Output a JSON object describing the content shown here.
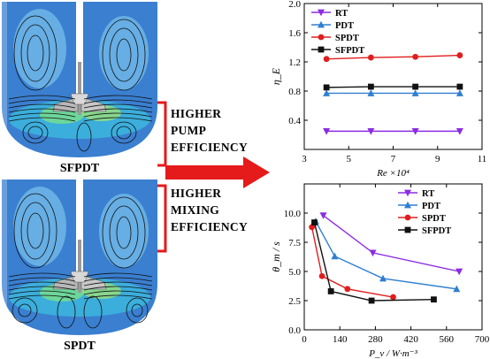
{
  "images": [
    {
      "label": "SFPDT"
    },
    {
      "label": "SPDT"
    }
  ],
  "annotations": {
    "pump": [
      "HIGHER",
      "PUMP",
      "EFFICIENCY"
    ],
    "mixing": [
      "HIGHER",
      "MIXING",
      "EFFICIENCY"
    ]
  },
  "colors": {
    "RT": "#8b2be2",
    "PDT": "#2f7fd0",
    "SPDT": "#e01e1e",
    "SFPDT": "#111111",
    "arrow": "#e51a1a",
    "flow_bg": "#3a7fd0",
    "flow_light": "#6fb6e8",
    "flow_cyan": "#3cd6e6"
  },
  "chart_data": [
    {
      "type": "line",
      "ylabel": "η_E",
      "xlabel": "Re ×10⁴",
      "xlim": [
        3,
        11
      ],
      "ylim": [
        0,
        2.0
      ],
      "xticks": [
        3,
        5,
        7,
        9,
        11
      ],
      "yticks": [
        0.4,
        0.8,
        1.2,
        1.6,
        2.0
      ],
      "legend_position": "top-left",
      "series": [
        {
          "name": "RT",
          "marker": "triangle-down",
          "x": [
            4,
            6,
            8,
            10
          ],
          "y": [
            0.25,
            0.25,
            0.25,
            0.25
          ]
        },
        {
          "name": "PDT",
          "marker": "triangle-up",
          "x": [
            4,
            6,
            8,
            10
          ],
          "y": [
            0.77,
            0.77,
            0.77,
            0.77
          ]
        },
        {
          "name": "SPDT",
          "marker": "circle",
          "x": [
            4,
            6,
            8,
            10
          ],
          "y": [
            1.24,
            1.26,
            1.27,
            1.29
          ]
        },
        {
          "name": "SFPDT",
          "marker": "square",
          "x": [
            4,
            6,
            8,
            10
          ],
          "y": [
            0.85,
            0.86,
            0.86,
            0.86
          ]
        }
      ]
    },
    {
      "type": "line",
      "ylabel": "θ_m / s",
      "xlabel": "P_v / W·m⁻³",
      "xlim": [
        0,
        700
      ],
      "ylim": [
        0,
        12.5
      ],
      "xticks": [
        0,
        140,
        280,
        420,
        560,
        700
      ],
      "yticks": [
        0.0,
        2.5,
        5.0,
        7.5,
        10.0
      ],
      "legend_position": "top-right",
      "series": [
        {
          "name": "RT",
          "marker": "triangle-down",
          "x": [
            75,
            270,
            610
          ],
          "y": [
            9.8,
            6.6,
            5.0
          ]
        },
        {
          "name": "PDT",
          "marker": "triangle-up",
          "x": [
            45,
            120,
            310,
            600
          ],
          "y": [
            9.3,
            6.3,
            4.4,
            3.5
          ]
        },
        {
          "name": "SPDT",
          "marker": "circle",
          "x": [
            30,
            70,
            170,
            350
          ],
          "y": [
            8.8,
            4.6,
            3.5,
            2.8
          ]
        },
        {
          "name": "SFPDT",
          "marker": "square",
          "x": [
            40,
            105,
            265,
            510
          ],
          "y": [
            9.2,
            3.3,
            2.5,
            2.6
          ]
        }
      ]
    }
  ]
}
